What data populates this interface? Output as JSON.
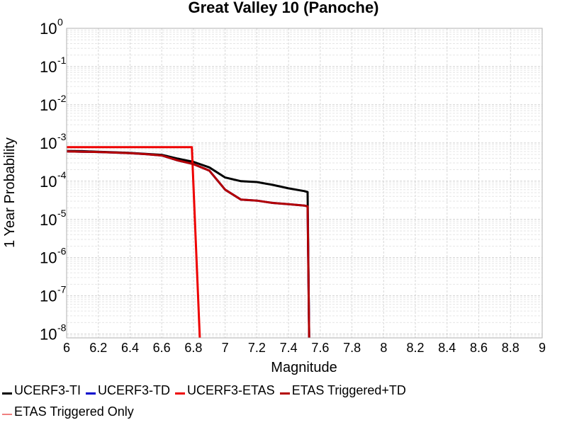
{
  "chart_data": {
    "type": "line",
    "title": "Great Valley 10 (Panoche)",
    "xlabel": "Magnitude",
    "ylabel": "1 Year Probability",
    "xlim": [
      6,
      9
    ],
    "ylim_log10": [
      -8.1,
      0
    ],
    "yscale": "log",
    "grid": true,
    "x_ticks": [
      "6",
      "6.2",
      "6.4",
      "6.6",
      "6.8",
      "7",
      "7.2",
      "7.4",
      "7.6",
      "7.8",
      "8",
      "8.2",
      "8.4",
      "8.6",
      "8.8",
      "9"
    ],
    "x_tick_values": [
      6,
      6.2,
      6.4,
      6.6,
      6.8,
      7,
      7.2,
      7.4,
      7.6,
      7.8,
      8,
      8.2,
      8.4,
      8.6,
      8.8,
      9
    ],
    "y_ticks": [
      {
        "base": "10",
        "exp": "0",
        "value": 0
      },
      {
        "base": "10",
        "exp": "-1",
        "value": -1
      },
      {
        "base": "10",
        "exp": "-2",
        "value": -2
      },
      {
        "base": "10",
        "exp": "-3",
        "value": -3
      },
      {
        "base": "10",
        "exp": "-4",
        "value": -4
      },
      {
        "base": "10",
        "exp": "-5",
        "value": -5
      },
      {
        "base": "10",
        "exp": "-6",
        "value": -6
      },
      {
        "base": "10",
        "exp": "-7",
        "value": -7
      },
      {
        "base": "10",
        "exp": "-8",
        "value": -8
      }
    ],
    "series": [
      {
        "name": "UCERF3-TI",
        "color": "#000000",
        "x": [
          6.0,
          6.1,
          6.2,
          6.3,
          6.4,
          6.5,
          6.6,
          6.7,
          6.8,
          6.9,
          7.0,
          7.1,
          7.2,
          7.3,
          7.4,
          7.5,
          7.52,
          7.53
        ],
        "y": [
          0.00062,
          0.00061,
          0.00059,
          0.00057,
          0.00055,
          0.00052,
          0.00049,
          0.00039,
          0.00032,
          0.00023,
          0.000125,
          0.0001,
          9.5e-05,
          8e-05,
          6.5e-05,
          5.5e-05,
          5.2e-05,
          1e-09
        ]
      },
      {
        "name": "UCERF3-TD",
        "color": "#0000cc",
        "x": [
          6.0,
          6.1,
          6.2,
          6.3,
          6.4,
          6.5,
          6.6,
          6.7,
          6.8,
          6.9,
          7.0,
          7.1,
          7.2,
          7.3,
          7.4,
          7.5,
          7.52,
          7.53
        ],
        "y": [
          0.0006,
          0.00059,
          0.00058,
          0.00056,
          0.00054,
          0.00051,
          0.00047,
          0.00035,
          0.00028,
          0.00019,
          6e-05,
          3.3e-05,
          3.1e-05,
          2.7e-05,
          2.5e-05,
          2.3e-05,
          2.2e-05,
          1e-09
        ]
      },
      {
        "name": "UCERF3-ETAS",
        "color": "#ee0000",
        "x": [
          6.0,
          6.79,
          6.79,
          6.84
        ],
        "y": [
          0.00078,
          0.00078,
          0.00078,
          1e-09
        ]
      },
      {
        "name": "ETAS Triggered+TD",
        "color": "#b30000",
        "x": [
          6.0,
          6.1,
          6.2,
          6.3,
          6.4,
          6.5,
          6.6,
          6.7,
          6.8,
          6.9,
          7.0,
          7.1,
          7.2,
          7.3,
          7.4,
          7.5,
          7.52,
          7.53
        ],
        "y": [
          0.0006,
          0.00059,
          0.00058,
          0.00056,
          0.00054,
          0.00051,
          0.00047,
          0.00035,
          0.00028,
          0.00019,
          6e-05,
          3.3e-05,
          3.1e-05,
          2.7e-05,
          2.5e-05,
          2.3e-05,
          2.2e-05,
          1e-09
        ]
      },
      {
        "name": "ETAS Triggered Only",
        "color": "#f08080",
        "x": [],
        "y": []
      }
    ]
  },
  "legend": {
    "rows": [
      [
        0,
        1,
        2,
        3
      ],
      [
        4
      ]
    ]
  }
}
